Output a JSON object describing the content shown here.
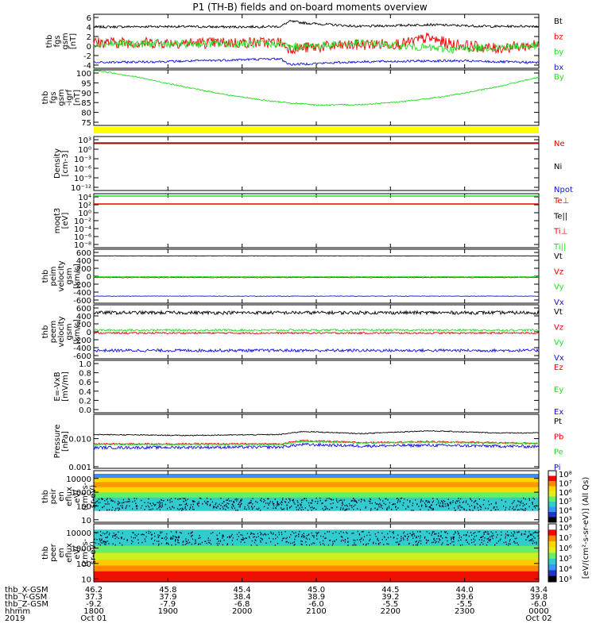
{
  "title": "P1 (TH-B) fields and on-board moments overview",
  "colors": {
    "black": "#000000",
    "red": "#ee0000",
    "green": "#22dd22",
    "blue": "#1111dd",
    "yellow": "#ffff00"
  },
  "chart_data": [
    {
      "type": "line",
      "panel": "fgs_gsm",
      "ylabel": [
        "thb",
        "fgs",
        "gsm",
        "[nT]"
      ],
      "ylim": [
        -5,
        6.5
      ],
      "yticks": [
        "6",
        "4",
        "2",
        "0",
        "-2",
        "-4"
      ],
      "series": [
        {
          "name": "Bt",
          "color": "#000000",
          "x": [
            0,
            0.15,
            0.3,
            0.42,
            0.44,
            0.48,
            0.6,
            0.75,
            0.82,
            0.9,
            1
          ],
          "y": [
            3.8,
            3.9,
            3.8,
            3.9,
            5.0,
            4.6,
            3.9,
            4.3,
            4.1,
            3.9,
            4.0
          ]
        },
        {
          "name": "bz",
          "color": "#ee0000",
          "x": [
            0,
            0.2,
            0.42,
            0.44,
            0.6,
            0.7,
            0.75,
            0.8,
            0.9,
            1
          ],
          "y": [
            0.5,
            0.4,
            0.5,
            -0.8,
            0.0,
            0.3,
            1.5,
            0.2,
            -0.8,
            0.0
          ]
        },
        {
          "name": "by",
          "color": "#22dd22",
          "x": [
            0,
            0.2,
            0.42,
            0.44,
            0.6,
            0.7,
            0.8,
            0.9,
            1
          ],
          "y": [
            0.2,
            0.2,
            0.2,
            -0.5,
            0.4,
            -0.3,
            -1.0,
            -0.5,
            -0.2
          ]
        },
        {
          "name": "bx",
          "color": "#1111dd",
          "x": [
            0,
            0.2,
            0.4,
            0.42,
            0.44,
            0.6,
            0.8,
            1
          ],
          "y": [
            -3.8,
            -3.5,
            -3.0,
            -3.0,
            -4.2,
            -3.6,
            -3.4,
            -3.8
          ]
        }
      ]
    },
    {
      "type": "line",
      "panel": "fgs_gsm_igrf",
      "ylabel": [
        "thb",
        "fgs",
        "gsm",
        "-igrf",
        "[nT]"
      ],
      "ylim": [
        70,
        100
      ],
      "yticks": [
        "100",
        "95",
        "90",
        "85",
        "80",
        "75"
      ],
      "series": [
        {
          "name": "By",
          "color": "#22dd22",
          "x": [
            0,
            0.1,
            0.2,
            0.3,
            0.4,
            0.5,
            0.6,
            0.7,
            0.8,
            0.9,
            1
          ],
          "y": [
            100,
            96,
            91,
            86.5,
            83,
            81,
            81.2,
            83,
            86,
            90.5,
            96
          ]
        }
      ]
    },
    {
      "type": "line",
      "panel": "density",
      "ylabel": [
        "Density",
        "[cm-3]"
      ],
      "yticks": [
        "10³",
        "10⁰",
        "10⁻³",
        "10⁻⁶",
        "10⁻⁹",
        "10⁻¹²"
      ],
      "series": [
        {
          "name": "Ne",
          "color": "#ee0000"
        },
        {
          "name": "Ni",
          "color": "#000000"
        },
        {
          "name": "Npot",
          "color": "#1111dd"
        }
      ]
    },
    {
      "type": "line",
      "panel": "temperature",
      "ylabel": [
        "moqt3",
        "[eV]"
      ],
      "yticks": [
        "10⁴",
        "10²",
        "10⁰",
        "10⁻²",
        "10⁻⁴",
        "10⁻⁶",
        "10⁻⁸"
      ],
      "series": [
        {
          "name": "Te⊥",
          "color": "#ee0000"
        },
        {
          "name": "Te||",
          "color": "#000000"
        },
        {
          "name": "Ti⊥",
          "color": "#ee0000"
        },
        {
          "name": "Ti||",
          "color": "#22dd22"
        }
      ]
    },
    {
      "type": "line",
      "panel": "peim_velocity",
      "ylabel": [
        "thb",
        "peim",
        "velocity",
        "gsm",
        "[km/s]"
      ],
      "ylim": [
        -650,
        650
      ],
      "yticks": [
        "600",
        "400",
        "200",
        "0",
        "-200",
        "-400",
        "-600"
      ],
      "series": [
        {
          "name": "Vt",
          "color": "#000000",
          "x": [
            0,
            1
          ],
          "y": [
            490,
            490
          ]
        },
        {
          "name": "Vz",
          "color": "#ee0000",
          "x": [
            0,
            1
          ],
          "y": [
            -30,
            -30
          ]
        },
        {
          "name": "Vy",
          "color": "#22dd22",
          "x": [
            0,
            1
          ],
          "y": [
            -10,
            -10
          ]
        },
        {
          "name": "Vx",
          "color": "#1111dd",
          "x": [
            0,
            1
          ],
          "y": [
            -480,
            -480
          ]
        }
      ]
    },
    {
      "type": "line",
      "panel": "peem_velocity",
      "ylabel": [
        "thb",
        "peem",
        "velocity",
        "gsm",
        "[km/s]"
      ],
      "ylim": [
        -650,
        650
      ],
      "yticks": [
        "600",
        "400",
        "200",
        "0",
        "-200",
        "-400",
        "-600"
      ],
      "series": [
        {
          "name": "Vt",
          "color": "#000000",
          "x": [
            0,
            1
          ],
          "y": [
            460,
            460
          ]
        },
        {
          "name": "Vz",
          "color": "#ee0000",
          "x": [
            0,
            1
          ],
          "y": [
            -30,
            -30
          ]
        },
        {
          "name": "Vy",
          "color": "#22dd22",
          "x": [
            0,
            1
          ],
          "y": [
            40,
            40
          ]
        },
        {
          "name": "Vx",
          "color": "#1111dd",
          "x": [
            0,
            1
          ],
          "y": [
            -450,
            -450
          ]
        }
      ]
    },
    {
      "type": "line",
      "panel": "e_field",
      "ylabel": [
        "E=-VxB",
        "[mV/m]"
      ],
      "ylim": [
        0,
        1
      ],
      "yticks": [
        "1.0",
        "0.8",
        "0.6",
        "0.4",
        "0.2",
        "0.0"
      ],
      "series": [
        {
          "name": "Ez",
          "color": "#ee0000"
        },
        {
          "name": "Ey",
          "color": "#22dd22"
        },
        {
          "name": "Ex",
          "color": "#1111dd"
        }
      ]
    },
    {
      "type": "line",
      "panel": "pressure",
      "ylabel": [
        "Pressure",
        "[nPa]"
      ],
      "yscale": "log",
      "yticks": [
        "0.010",
        "0.001"
      ],
      "series": [
        {
          "name": "Pt",
          "color": "#000000",
          "x": [
            0,
            0.2,
            0.42,
            0.47,
            0.6,
            0.75,
            0.9,
            1
          ],
          "y": [
            0.014,
            0.013,
            0.014,
            0.018,
            0.015,
            0.019,
            0.016,
            0.016
          ]
        },
        {
          "name": "Pb",
          "color": "#ee0000",
          "x": [
            0,
            0.42,
            0.47,
            0.6,
            0.75,
            1
          ],
          "y": [
            0.0065,
            0.0065,
            0.0085,
            0.0072,
            0.0078,
            0.0068
          ]
        },
        {
          "name": "Pe",
          "color": "#22dd22",
          "x": [
            0,
            0.42,
            0.47,
            0.6,
            0.75,
            1
          ],
          "y": [
            0.0062,
            0.0062,
            0.008,
            0.007,
            0.0075,
            0.0066
          ]
        },
        {
          "name": "Pi",
          "color": "#1111dd",
          "x": [
            0,
            0.42,
            0.47,
            0.6,
            0.75,
            1
          ],
          "y": [
            0.0048,
            0.005,
            0.0062,
            0.0055,
            0.0058,
            0.0052
          ]
        }
      ]
    },
    {
      "type": "heatmap",
      "panel": "peir_en_eflux",
      "ylabel": [
        "thb",
        "peir",
        "en",
        "eflux",
        "eV/",
        "(cm²-s-",
        "sr-eV)"
      ],
      "yticks": [
        "10000",
        "1000",
        "100",
        "10"
      ]
    },
    {
      "type": "heatmap",
      "panel": "peer_en_eflux",
      "ylabel": [
        "thb",
        "peer",
        "en",
        "eflux",
        "eV/",
        "(cm²-s-",
        "sr-eV)"
      ],
      "yticks": [
        "10000",
        "1000",
        "100",
        "10"
      ]
    }
  ],
  "colorbar": {
    "labels": [
      "10⁸",
      "10⁷",
      "10⁶",
      "10⁵",
      "10⁴",
      "10³",
      "10⁸",
      "10⁷",
      "10⁶",
      "10⁵",
      "10⁴",
      "10³"
    ],
    "title": "[eV/(cm²-s-sr-eV)] (All Qs)"
  },
  "x_axis": {
    "rows": [
      {
        "label": "thb_X-GSM",
        "values": [
          "46.2",
          "45.8",
          "45.4",
          "45.0",
          "44.5",
          "44.0",
          "43.4"
        ]
      },
      {
        "label": "thb_Y-GSM",
        "values": [
          "37.3",
          "37.9",
          "38.4",
          "38.9",
          "39.2",
          "39.6",
          "39.8"
        ]
      },
      {
        "label": "thb_Z-GSM",
        "values": [
          "-9.2",
          "-7.9",
          "-6.8",
          "-6.0",
          "-5.5",
          "-5.5",
          "-6.0"
        ]
      },
      {
        "label": "hhmm",
        "values": [
          "1800",
          "1900",
          "2000",
          "2100",
          "2200",
          "2300",
          "0000"
        ]
      }
    ],
    "year": "2019",
    "date_start": "Oct 01",
    "date_end": "Oct 02"
  }
}
